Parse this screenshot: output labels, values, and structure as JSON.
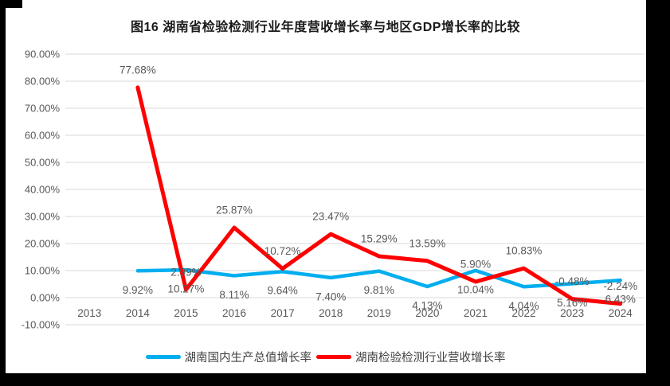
{
  "page": {
    "title": "图16  湖南省检验检测行业年度营收增长率与地区GDP增长率的比较"
  },
  "chart_data": {
    "type": "line",
    "title": "图16  湖南省检验检测行业年度营收增长率与地区GDP增长率的比较",
    "categories": [
      "2013",
      "2014",
      "2015",
      "2016",
      "2017",
      "2018",
      "2019",
      "2020",
      "2021",
      "2022",
      "2023",
      "2024"
    ],
    "series": [
      {
        "name": "湖南国内生产总值增长率",
        "color": "#00AEEF",
        "values": [
          null,
          9.92,
          10.27,
          8.11,
          9.64,
          7.4,
          9.81,
          4.13,
          10.04,
          4.04,
          5.16,
          6.43
        ],
        "labels": [
          "",
          "9.92%",
          "10.27%",
          "8.11%",
          "9.64%",
          "7.40%",
          "9.81%",
          "4.13%",
          "10.04%",
          "4.04%",
          "5.16%",
          "6.43%"
        ],
        "label_position": "below"
      },
      {
        "name": "湖南检验检测行业营收增长率",
        "color": "#FF0000",
        "values": [
          null,
          77.68,
          2.99,
          25.87,
          10.72,
          23.47,
          15.29,
          13.59,
          5.9,
          10.83,
          -0.48,
          -2.24
        ],
        "labels": [
          "",
          "77.68%",
          "2.99%",
          "25.87%",
          "10.72%",
          "23.47%",
          "15.29%",
          "13.59%",
          "5.90%",
          "10.83%",
          "-0.48%",
          "-2.24%"
        ],
        "label_position": "above"
      }
    ],
    "xlabel": "",
    "ylabel": "",
    "ylim": [
      -10,
      90
    ],
    "ytick_step": 10,
    "ytick_labels": [
      "90.00%",
      "80.00%",
      "70.00%",
      "60.00%",
      "50.00%",
      "40.00%",
      "30.00%",
      "20.00%",
      "10.00%",
      "0.00%",
      "-10.00%"
    ],
    "grid": true,
    "gridline_color": "#D9D9D9",
    "axis_text_color": "#595959",
    "legend_position": "bottom"
  }
}
